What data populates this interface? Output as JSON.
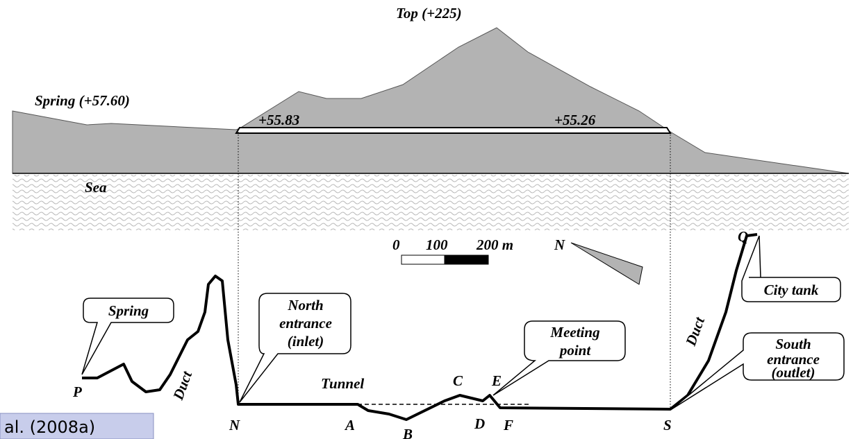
{
  "profile": {
    "top": "Top (+225)",
    "spring": "Spring (+57.60)",
    "north_level": "+55.83",
    "south_level": "+55.26",
    "sea": "Sea"
  },
  "scale": {
    "zero": "0",
    "mid": "100",
    "end": "200 m",
    "north": "N"
  },
  "plan": {
    "callouts": {
      "spring": [
        "Spring"
      ],
      "north": [
        "North",
        "entrance",
        "(inlet)"
      ],
      "meeting": [
        "Meeting",
        "point"
      ],
      "city": [
        "City tank"
      ],
      "south": [
        "South",
        "entrance",
        "(outlet)"
      ]
    },
    "tunnel": "Tunnel",
    "duct_left": "Duct",
    "duct_right": "Duct",
    "points": {
      "P": "P",
      "N": "N",
      "A": "A",
      "B": "B",
      "C": "C",
      "D": "D",
      "E": "E",
      "F": "F",
      "S": "S",
      "Q": "Q"
    }
  },
  "citation": "al. (2008a)"
}
